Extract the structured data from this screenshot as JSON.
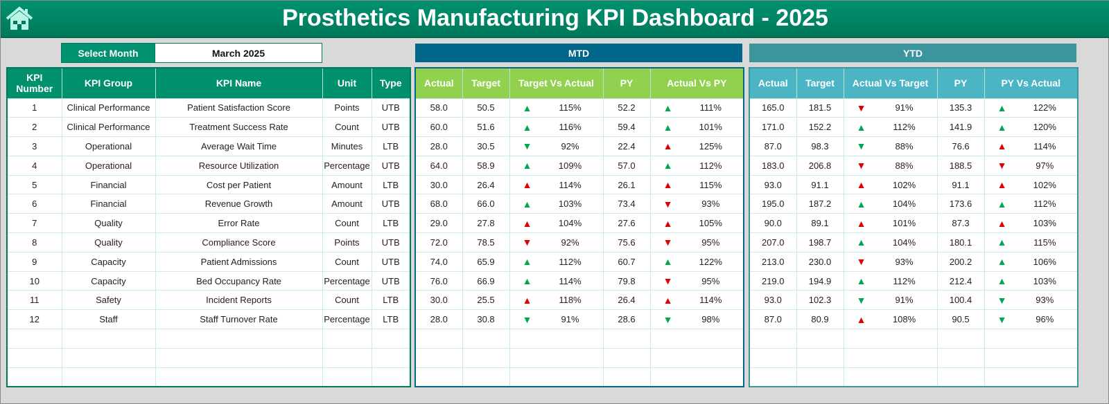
{
  "header": {
    "title": "Prosthetics Manufacturing KPI Dashboard - 2025",
    "home_icon": "home-icon"
  },
  "month_selector": {
    "label": "Select Month",
    "value": "March 2025"
  },
  "sections": {
    "mtd": "MTD",
    "ytd": "YTD"
  },
  "colors": {
    "green": "#00a651",
    "red": "#e00000",
    "title": "#00876a",
    "mtd": "#00678a",
    "ytd": "#3a959c",
    "mtd_header": "#92d050",
    "ytd_header": "#4bb5c4"
  },
  "columns": {
    "left": [
      "KPI Number",
      "KPI Group",
      "KPI Name",
      "Unit",
      "Type"
    ],
    "mtd": [
      "Actual",
      "Target",
      "Target Vs Actual",
      "PY",
      "Actual Vs PY"
    ],
    "ytd": [
      "Actual",
      "Target",
      "Actual Vs Target",
      "PY",
      "PY Vs Actual"
    ]
  },
  "rows": [
    {
      "num": "1",
      "group": "Clinical Performance",
      "name": "Patient Satisfaction Score",
      "unit": "Points",
      "type": "UTB",
      "mtd": {
        "actual": "58.0",
        "target": "50.5",
        "tva": {
          "arrow": "up",
          "color": "green",
          "pct": "115%"
        },
        "py": "52.2",
        "avp": {
          "arrow": "up",
          "color": "green",
          "pct": "111%"
        }
      },
      "ytd": {
        "actual": "165.0",
        "target": "181.5",
        "avt": {
          "arrow": "down",
          "color": "red",
          "pct": "91%"
        },
        "py": "135.3",
        "pva": {
          "arrow": "up",
          "color": "green",
          "pct": "122%"
        }
      }
    },
    {
      "num": "2",
      "group": "Clinical Performance",
      "name": "Treatment Success Rate",
      "unit": "Count",
      "type": "UTB",
      "mtd": {
        "actual": "60.0",
        "target": "51.6",
        "tva": {
          "arrow": "up",
          "color": "green",
          "pct": "116%"
        },
        "py": "59.4",
        "avp": {
          "arrow": "up",
          "color": "green",
          "pct": "101%"
        }
      },
      "ytd": {
        "actual": "171.0",
        "target": "152.2",
        "avt": {
          "arrow": "up",
          "color": "green",
          "pct": "112%"
        },
        "py": "141.9",
        "pva": {
          "arrow": "up",
          "color": "green",
          "pct": "120%"
        }
      }
    },
    {
      "num": "3",
      "group": "Operational",
      "name": "Average Wait Time",
      "unit": "Minutes",
      "type": "LTB",
      "mtd": {
        "actual": "28.0",
        "target": "30.5",
        "tva": {
          "arrow": "down",
          "color": "green",
          "pct": "92%"
        },
        "py": "22.4",
        "avp": {
          "arrow": "up",
          "color": "red",
          "pct": "125%"
        }
      },
      "ytd": {
        "actual": "87.0",
        "target": "98.3",
        "avt": {
          "arrow": "down",
          "color": "green",
          "pct": "88%"
        },
        "py": "76.6",
        "pva": {
          "arrow": "up",
          "color": "red",
          "pct": "114%"
        }
      }
    },
    {
      "num": "4",
      "group": "Operational",
      "name": "Resource Utilization",
      "unit": "Percentage",
      "type": "UTB",
      "mtd": {
        "actual": "64.0",
        "target": "58.9",
        "tva": {
          "arrow": "up",
          "color": "green",
          "pct": "109%"
        },
        "py": "57.0",
        "avp": {
          "arrow": "up",
          "color": "green",
          "pct": "112%"
        }
      },
      "ytd": {
        "actual": "183.0",
        "target": "206.8",
        "avt": {
          "arrow": "down",
          "color": "red",
          "pct": "88%"
        },
        "py": "188.5",
        "pva": {
          "arrow": "down",
          "color": "red",
          "pct": "97%"
        }
      }
    },
    {
      "num": "5",
      "group": "Financial",
      "name": "Cost per Patient",
      "unit": "Amount",
      "type": "LTB",
      "mtd": {
        "actual": "30.0",
        "target": "26.4",
        "tva": {
          "arrow": "up",
          "color": "red",
          "pct": "114%"
        },
        "py": "26.1",
        "avp": {
          "arrow": "up",
          "color": "red",
          "pct": "115%"
        }
      },
      "ytd": {
        "actual": "93.0",
        "target": "91.1",
        "avt": {
          "arrow": "up",
          "color": "red",
          "pct": "102%"
        },
        "py": "91.1",
        "pva": {
          "arrow": "up",
          "color": "red",
          "pct": "102%"
        }
      }
    },
    {
      "num": "6",
      "group": "Financial",
      "name": "Revenue Growth",
      "unit": "Amount",
      "type": "UTB",
      "mtd": {
        "actual": "68.0",
        "target": "66.0",
        "tva": {
          "arrow": "up",
          "color": "green",
          "pct": "103%"
        },
        "py": "73.4",
        "avp": {
          "arrow": "down",
          "color": "red",
          "pct": "93%"
        }
      },
      "ytd": {
        "actual": "195.0",
        "target": "187.2",
        "avt": {
          "arrow": "up",
          "color": "green",
          "pct": "104%"
        },
        "py": "173.6",
        "pva": {
          "arrow": "up",
          "color": "green",
          "pct": "112%"
        }
      }
    },
    {
      "num": "7",
      "group": "Quality",
      "name": "Error Rate",
      "unit": "Count",
      "type": "LTB",
      "mtd": {
        "actual": "29.0",
        "target": "27.8",
        "tva": {
          "arrow": "up",
          "color": "red",
          "pct": "104%"
        },
        "py": "27.6",
        "avp": {
          "arrow": "up",
          "color": "red",
          "pct": "105%"
        }
      },
      "ytd": {
        "actual": "90.0",
        "target": "89.1",
        "avt": {
          "arrow": "up",
          "color": "red",
          "pct": "101%"
        },
        "py": "87.3",
        "pva": {
          "arrow": "up",
          "color": "red",
          "pct": "103%"
        }
      }
    },
    {
      "num": "8",
      "group": "Quality",
      "name": "Compliance Score",
      "unit": "Points",
      "type": "UTB",
      "mtd": {
        "actual": "72.0",
        "target": "78.5",
        "tva": {
          "arrow": "down",
          "color": "red",
          "pct": "92%"
        },
        "py": "75.6",
        "avp": {
          "arrow": "down",
          "color": "red",
          "pct": "95%"
        }
      },
      "ytd": {
        "actual": "207.0",
        "target": "198.7",
        "avt": {
          "arrow": "up",
          "color": "green",
          "pct": "104%"
        },
        "py": "180.1",
        "pva": {
          "arrow": "up",
          "color": "green",
          "pct": "115%"
        }
      }
    },
    {
      "num": "9",
      "group": "Capacity",
      "name": "Patient Admissions",
      "unit": "Count",
      "type": "UTB",
      "mtd": {
        "actual": "74.0",
        "target": "65.9",
        "tva": {
          "arrow": "up",
          "color": "green",
          "pct": "112%"
        },
        "py": "60.7",
        "avp": {
          "arrow": "up",
          "color": "green",
          "pct": "122%"
        }
      },
      "ytd": {
        "actual": "213.0",
        "target": "230.0",
        "avt": {
          "arrow": "down",
          "color": "red",
          "pct": "93%"
        },
        "py": "200.2",
        "pva": {
          "arrow": "up",
          "color": "green",
          "pct": "106%"
        }
      }
    },
    {
      "num": "10",
      "group": "Capacity",
      "name": "Bed Occupancy Rate",
      "unit": "Percentage",
      "type": "UTB",
      "mtd": {
        "actual": "76.0",
        "target": "66.9",
        "tva": {
          "arrow": "up",
          "color": "green",
          "pct": "114%"
        },
        "py": "79.8",
        "avp": {
          "arrow": "down",
          "color": "red",
          "pct": "95%"
        }
      },
      "ytd": {
        "actual": "219.0",
        "target": "194.9",
        "avt": {
          "arrow": "up",
          "color": "green",
          "pct": "112%"
        },
        "py": "212.4",
        "pva": {
          "arrow": "up",
          "color": "green",
          "pct": "103%"
        }
      }
    },
    {
      "num": "11",
      "group": "Safety",
      "name": "Incident Reports",
      "unit": "Count",
      "type": "LTB",
      "mtd": {
        "actual": "30.0",
        "target": "25.5",
        "tva": {
          "arrow": "up",
          "color": "red",
          "pct": "118%"
        },
        "py": "26.4",
        "avp": {
          "arrow": "up",
          "color": "red",
          "pct": "114%"
        }
      },
      "ytd": {
        "actual": "93.0",
        "target": "102.3",
        "avt": {
          "arrow": "down",
          "color": "green",
          "pct": "91%"
        },
        "py": "100.4",
        "pva": {
          "arrow": "down",
          "color": "green",
          "pct": "93%"
        }
      }
    },
    {
      "num": "12",
      "group": "Staff",
      "name": "Staff Turnover Rate",
      "unit": "Percentage",
      "type": "LTB",
      "mtd": {
        "actual": "28.0",
        "target": "30.8",
        "tva": {
          "arrow": "down",
          "color": "green",
          "pct": "91%"
        },
        "py": "28.6",
        "avp": {
          "arrow": "down",
          "color": "green",
          "pct": "98%"
        }
      },
      "ytd": {
        "actual": "87.0",
        "target": "80.9",
        "avt": {
          "arrow": "up",
          "color": "red",
          "pct": "108%"
        },
        "py": "90.5",
        "pva": {
          "arrow": "down",
          "color": "green",
          "pct": "96%"
        }
      }
    }
  ]
}
